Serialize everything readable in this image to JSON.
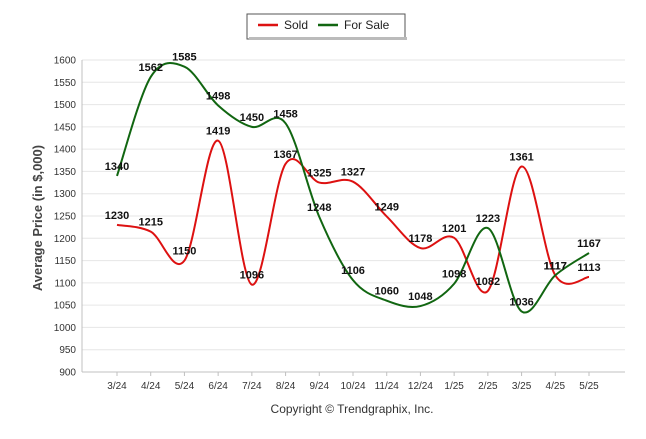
{
  "chart_data": {
    "type": "line",
    "categories": [
      "3/24",
      "4/24",
      "5/24",
      "6/24",
      "7/24",
      "8/24",
      "9/24",
      "10/24",
      "11/24",
      "12/24",
      "1/25",
      "2/25",
      "3/25",
      "4/25",
      "5/25"
    ],
    "series": [
      {
        "name": "Sold",
        "color": "#dd1111",
        "values": [
          1230,
          1215,
          1150,
          1419,
          1096,
          1367,
          1325,
          1327,
          1249,
          1178,
          1201,
          1082,
          1361,
          1117,
          1113
        ]
      },
      {
        "name": "For Sale",
        "color": "#116611",
        "values": [
          1340,
          1562,
          1585,
          1498,
          1450,
          1458,
          1248,
          1106,
          1060,
          1048,
          1098,
          1223,
          1036,
          1117,
          1167
        ]
      }
    ],
    "ylabel": "Average Price (in $,000)",
    "ylim": [
      900,
      1600
    ],
    "yticks": [
      900,
      950,
      1000,
      1050,
      1100,
      1150,
      1200,
      1250,
      1300,
      1350,
      1400,
      1450,
      1500,
      1550,
      1600
    ],
    "grid": true,
    "legend_position": "top-center",
    "copyright": "Copyright © Trendgraphix, Inc."
  }
}
